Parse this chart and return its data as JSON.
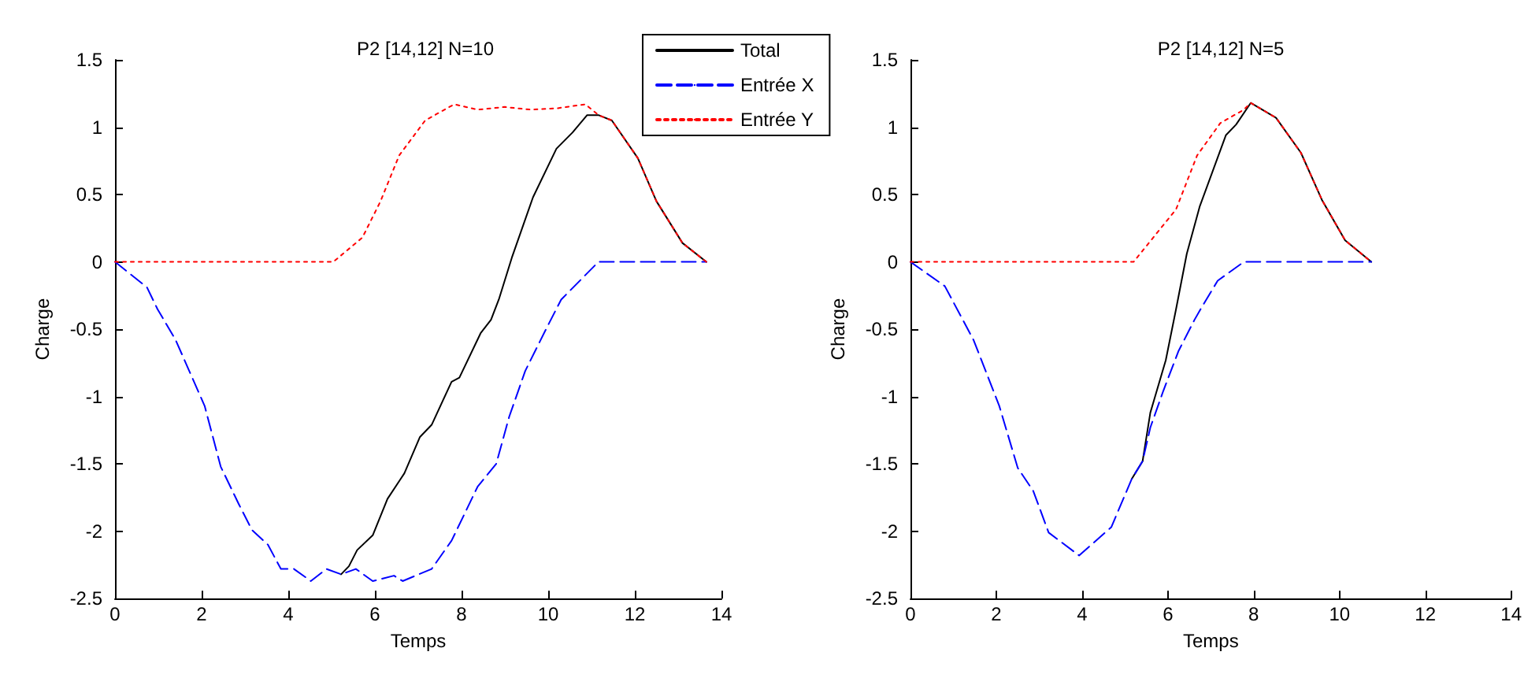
{
  "chart_data": [
    {
      "type": "line",
      "title": "P2 [14,12] N=10",
      "xlabel": "Temps",
      "ylabel": "Charge",
      "xlim": [
        0,
        14
      ],
      "xticks": [
        0,
        2,
        4,
        6,
        8,
        10,
        12,
        14
      ],
      "ylim": [
        -2.5,
        1.5
      ],
      "yticks": [
        -2.5,
        -2,
        -1.5,
        -1,
        -0.5,
        0,
        0.5,
        1,
        1.5
      ],
      "grid": false,
      "legend": "top right",
      "marker": "none",
      "series": [
        {
          "name": "Total",
          "color": "#000000",
          "line_style": "solid",
          "x": [
            5.22,
            5.4,
            5.59,
            5.95,
            6.29,
            6.68,
            7.04,
            7.31,
            7.77,
            7.95,
            8.44,
            8.68,
            8.86,
            9.16,
            9.65,
            10.19,
            10.56,
            10.9,
            11.16,
            11.47,
            12.07,
            12.5,
            13.1,
            13.65
          ],
          "values": [
            -2.32,
            -2.26,
            -2.14,
            -2.03,
            -1.76,
            -1.57,
            -1.3,
            -1.21,
            -0.89,
            -0.86,
            -0.53,
            -0.43,
            -0.28,
            0.03,
            0.48,
            0.84,
            0.96,
            1.09,
            1.09,
            1.05,
            0.77,
            0.45,
            0.14,
            0
          ]
        },
        {
          "name": "Entrée X",
          "color": "#0000ff",
          "line_style": "dashed",
          "x": [
            0,
            0.74,
            0.98,
            1.4,
            2.07,
            2.44,
            2.86,
            3.16,
            3.53,
            3.83,
            4.13,
            4.52,
            4.88,
            5.22,
            5.56,
            5.95,
            6.44,
            6.64,
            7.31,
            7.77,
            8.37,
            8.8,
            9.1,
            9.47,
            9.95,
            10.3,
            11.16,
            13.65
          ],
          "values": [
            0,
            -0.19,
            -0.35,
            -0.58,
            -1.07,
            -1.52,
            -1.8,
            -1.99,
            -2.1,
            -2.28,
            -2.28,
            -2.37,
            -2.28,
            -2.32,
            -2.28,
            -2.37,
            -2.33,
            -2.37,
            -2.28,
            -2.07,
            -1.67,
            -1.5,
            -1.15,
            -0.81,
            -0.5,
            -0.28,
            0,
            0
          ]
        },
        {
          "name": "Entrée Y",
          "color": "#ff0000",
          "line_style": "dotted",
          "x": [
            0,
            5.04,
            5.71,
            6.13,
            6.56,
            7.16,
            7.83,
            8.37,
            9,
            9.6,
            10.2,
            10.86,
            11.16,
            11.47,
            12.07,
            12.5,
            13.1,
            13.65
          ],
          "values": [
            0,
            0,
            0.18,
            0.45,
            0.79,
            1.05,
            1.17,
            1.13,
            1.15,
            1.13,
            1.14,
            1.17,
            1.09,
            1.05,
            0.77,
            0.45,
            0.14,
            0
          ]
        }
      ]
    },
    {
      "type": "line",
      "title": "P2 [14,12] N=5",
      "xlabel": "Temps",
      "ylabel": "Charge",
      "xlim": [
        0,
        14
      ],
      "xticks": [
        0,
        2,
        4,
        6,
        8,
        10,
        12,
        14
      ],
      "ylim": [
        -2.5,
        1.5
      ],
      "yticks": [
        -2.5,
        -2,
        -1.5,
        -1,
        -0.5,
        0,
        0.5,
        1,
        1.5
      ],
      "grid": false,
      "marker": "none",
      "series": [
        {
          "color": "#000000",
          "line_style": "solid",
          "x": [
            5.16,
            5.41,
            5.59,
            5.95,
            6.19,
            6.44,
            6.74,
            7.35,
            7.59,
            7.93,
            8.52,
            9.1,
            9.59,
            10.13,
            10.74
          ],
          "values": [
            -1.61,
            -1.48,
            -1.12,
            -0.73,
            -0.35,
            0.06,
            0.41,
            0.94,
            1.02,
            1.18,
            1.07,
            0.81,
            0.46,
            0.16,
            0
          ]
        },
        {
          "color": "#0000ff",
          "line_style": "dashed",
          "x": [
            0,
            0.8,
            1.47,
            2.07,
            2.5,
            2.86,
            3.22,
            3.93,
            4.68,
            5.16,
            5.41,
            5.59,
            5.89,
            6.25,
            6.62,
            6.8,
            7.16,
            7.77,
            10.74
          ],
          "values": [
            0,
            -0.18,
            -0.58,
            -1.07,
            -1.53,
            -1.7,
            -2.01,
            -2.18,
            -1.97,
            -1.61,
            -1.48,
            -1.23,
            -0.96,
            -0.66,
            -0.43,
            -0.33,
            -0.14,
            0,
            0
          ]
        },
        {
          "color": "#ff0000",
          "line_style": "dotted",
          "x": [
            0,
            5.2,
            6.19,
            6.68,
            7.22,
            7.77,
            7.93,
            8.52,
            9.1,
            9.59,
            10.13,
            10.74
          ],
          "values": [
            0,
            0,
            0.39,
            0.79,
            1.03,
            1.13,
            1.18,
            1.07,
            0.81,
            0.46,
            0.16,
            0
          ]
        }
      ]
    }
  ]
}
